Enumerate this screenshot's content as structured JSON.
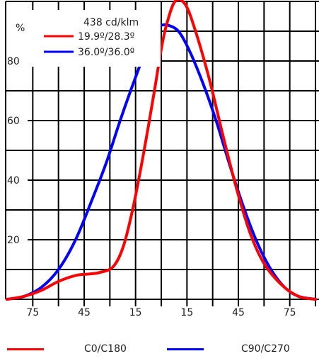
{
  "chart_data": {
    "type": "line",
    "y_unit_label": "%",
    "y_ticks": [
      "20",
      "40",
      "60",
      "80"
    ],
    "x_tick_labels": [
      "75",
      "45",
      "15",
      "15",
      "45",
      "75"
    ],
    "x_tick_values": [
      -75,
      -45,
      -15,
      15,
      45,
      75
    ],
    "xlim": [
      -90,
      90
    ],
    "ylim": [
      0,
      100
    ],
    "grid": true,
    "legend": {
      "placement": "top-left",
      "intensity": "438 cd/klm",
      "entries": [
        "19.9º/28.3º",
        "36.0º/36.0º"
      ]
    },
    "series": [
      {
        "name": "C0/C180",
        "color": "#ff0000",
        "x": [
          -90,
          -80,
          -70,
          -60,
          -50,
          -42,
          -36,
          -28,
          -22,
          -16,
          -10,
          -4,
          0,
          3,
          8,
          14,
          20,
          28,
          36,
          44,
          52,
          60,
          70,
          80,
          90
        ],
        "y": [
          0,
          1,
          3,
          6,
          8,
          8.5,
          9,
          11,
          18,
          32,
          50,
          70,
          84,
          92,
          100,
          99,
          90,
          74,
          55,
          37,
          22,
          12,
          5,
          1,
          0
        ]
      },
      {
        "name": "C90/C270",
        "color": "#0000ff",
        "x": [
          -90,
          -80,
          -70,
          -60,
          -50,
          -40,
          -32,
          -24,
          -16,
          -8,
          -2,
          0,
          4,
          10,
          16,
          24,
          32,
          40,
          48,
          56,
          64,
          72,
          80,
          90
        ],
        "y": [
          0,
          1,
          4,
          10,
          20,
          34,
          46,
          60,
          73,
          85,
          91,
          92,
          92,
          90,
          84,
          73,
          60,
          45,
          31,
          19,
          10,
          4,
          1,
          0
        ]
      }
    ]
  },
  "bottom_legend": [
    {
      "label": "C0/C180",
      "color": "#ff0000"
    },
    {
      "label": "C90/C270",
      "color": "#0000ff"
    }
  ]
}
